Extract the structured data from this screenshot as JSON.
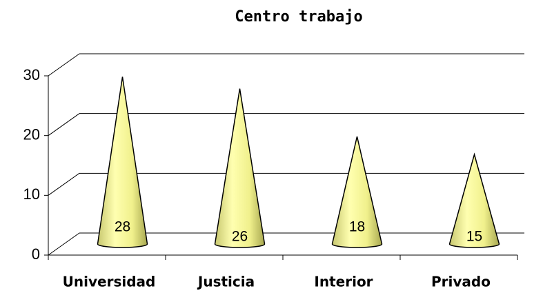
{
  "chart_data": {
    "type": "cone",
    "title": "Centro trabajo",
    "categories": [
      "Universidad",
      "Justicia",
      "Interior",
      "Privado"
    ],
    "values": [
      28,
      26,
      18,
      15
    ],
    "color": "#ffff99",
    "ylim": [
      0,
      30
    ],
    "yticks": [
      0,
      10,
      20,
      30
    ],
    "grid": true
  }
}
